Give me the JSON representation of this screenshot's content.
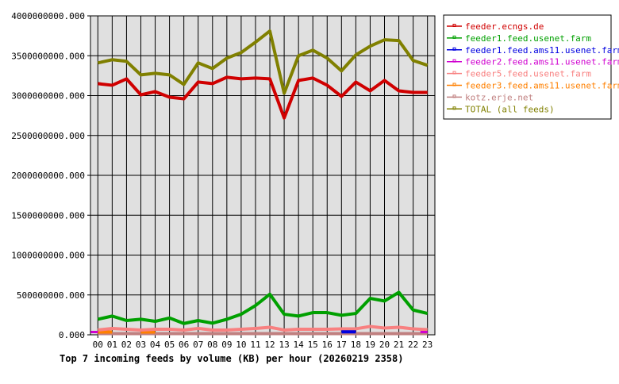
{
  "chart_data": {
    "type": "line",
    "title": "Top 7 incoming feeds by volume (KB) per hour (20260219 2358)",
    "xlabel": "",
    "ylabel": "",
    "ylim": [
      0,
      4000000000
    ],
    "yticks": [
      "0.000",
      "500000000.000",
      "1000000000.000",
      "1500000000.000",
      "2000000000.000",
      "2500000000.000",
      "3000000000.000",
      "3500000000.000",
      "4000000000.000"
    ],
    "categories": [
      "00",
      "01",
      "02",
      "03",
      "04",
      "05",
      "06",
      "07",
      "08",
      "09",
      "10",
      "11",
      "12",
      "13",
      "14",
      "15",
      "16",
      "17",
      "18",
      "19",
      "20",
      "21",
      "22",
      "23"
    ],
    "grid": true,
    "legend_position": "right",
    "background": "#e0e0e0",
    "series": [
      {
        "name": "feeder.ecngs.de",
        "color": "#d00000",
        "values": [
          3150,
          3130,
          3210,
          3010,
          3050,
          2980,
          2960,
          3170,
          3150,
          3230,
          3210,
          3220,
          3210,
          2720,
          3190,
          3220,
          3130,
          2990,
          3170,
          3060,
          3190,
          3060,
          3040,
          3040
        ]
      },
      {
        "name": "feeder1.feed.usenet.farm",
        "color": "#00a000",
        "values": [
          195,
          235,
          179,
          195,
          169,
          211,
          142,
          179,
          146,
          195,
          258,
          367,
          509,
          258,
          235,
          278,
          278,
          245,
          268,
          457,
          424,
          533,
          311,
          268
        ]
      },
      {
        "name": "feeder1.feed.ams11.usenet.farm",
        "color": "#0000e0",
        "values": [
          null,
          null,
          null,
          null,
          null,
          null,
          null,
          null,
          null,
          null,
          null,
          null,
          null,
          null,
          null,
          null,
          null,
          37,
          37,
          null,
          null,
          null,
          null,
          null
        ]
      },
      {
        "name": "feeder2.feed.ams11.usenet.farm",
        "color": "#d000d0",
        "values": [
          35,
          null,
          null,
          null,
          null,
          null,
          null,
          null,
          null,
          null,
          null,
          null,
          null,
          null,
          null,
          null,
          null,
          null,
          null,
          null,
          null,
          null,
          null,
          35
        ]
      },
      {
        "name": "feeder5.feed.usenet.farm",
        "color": "#f88080",
        "values": [
          60,
          80,
          70,
          60,
          70,
          70,
          60,
          80,
          60,
          60,
          70,
          80,
          95,
          60,
          70,
          70,
          70,
          75,
          75,
          105,
          85,
          95,
          75,
          65
        ]
      },
      {
        "name": "feeder3.feed.ams11.usenet.farm",
        "color": "#ff8000",
        "values": [
          35,
          35,
          null,
          35,
          35,
          null,
          null,
          null,
          null,
          null,
          null,
          null,
          null,
          null,
          null,
          null,
          null,
          null,
          null,
          null,
          null,
          null,
          null,
          null
        ]
      },
      {
        "name": "kotz.erje.net",
        "color": "#c08080",
        "values": [
          15,
          15,
          15,
          15,
          15,
          15,
          15,
          15,
          15,
          15,
          15,
          15,
          15,
          15,
          15,
          15,
          15,
          15,
          15,
          15,
          15,
          15,
          15,
          15
        ]
      },
      {
        "name": "TOTAL (all feeds)",
        "color": "#808000",
        "values": [
          3410,
          3450,
          3430,
          3260,
          3280,
          3260,
          3140,
          3410,
          3340,
          3470,
          3540,
          3670,
          3810,
          3030,
          3500,
          3570,
          3470,
          3310,
          3510,
          3620,
          3700,
          3690,
          3440,
          3380
        ]
      }
    ],
    "value_unit_multiplier": 1000000
  }
}
